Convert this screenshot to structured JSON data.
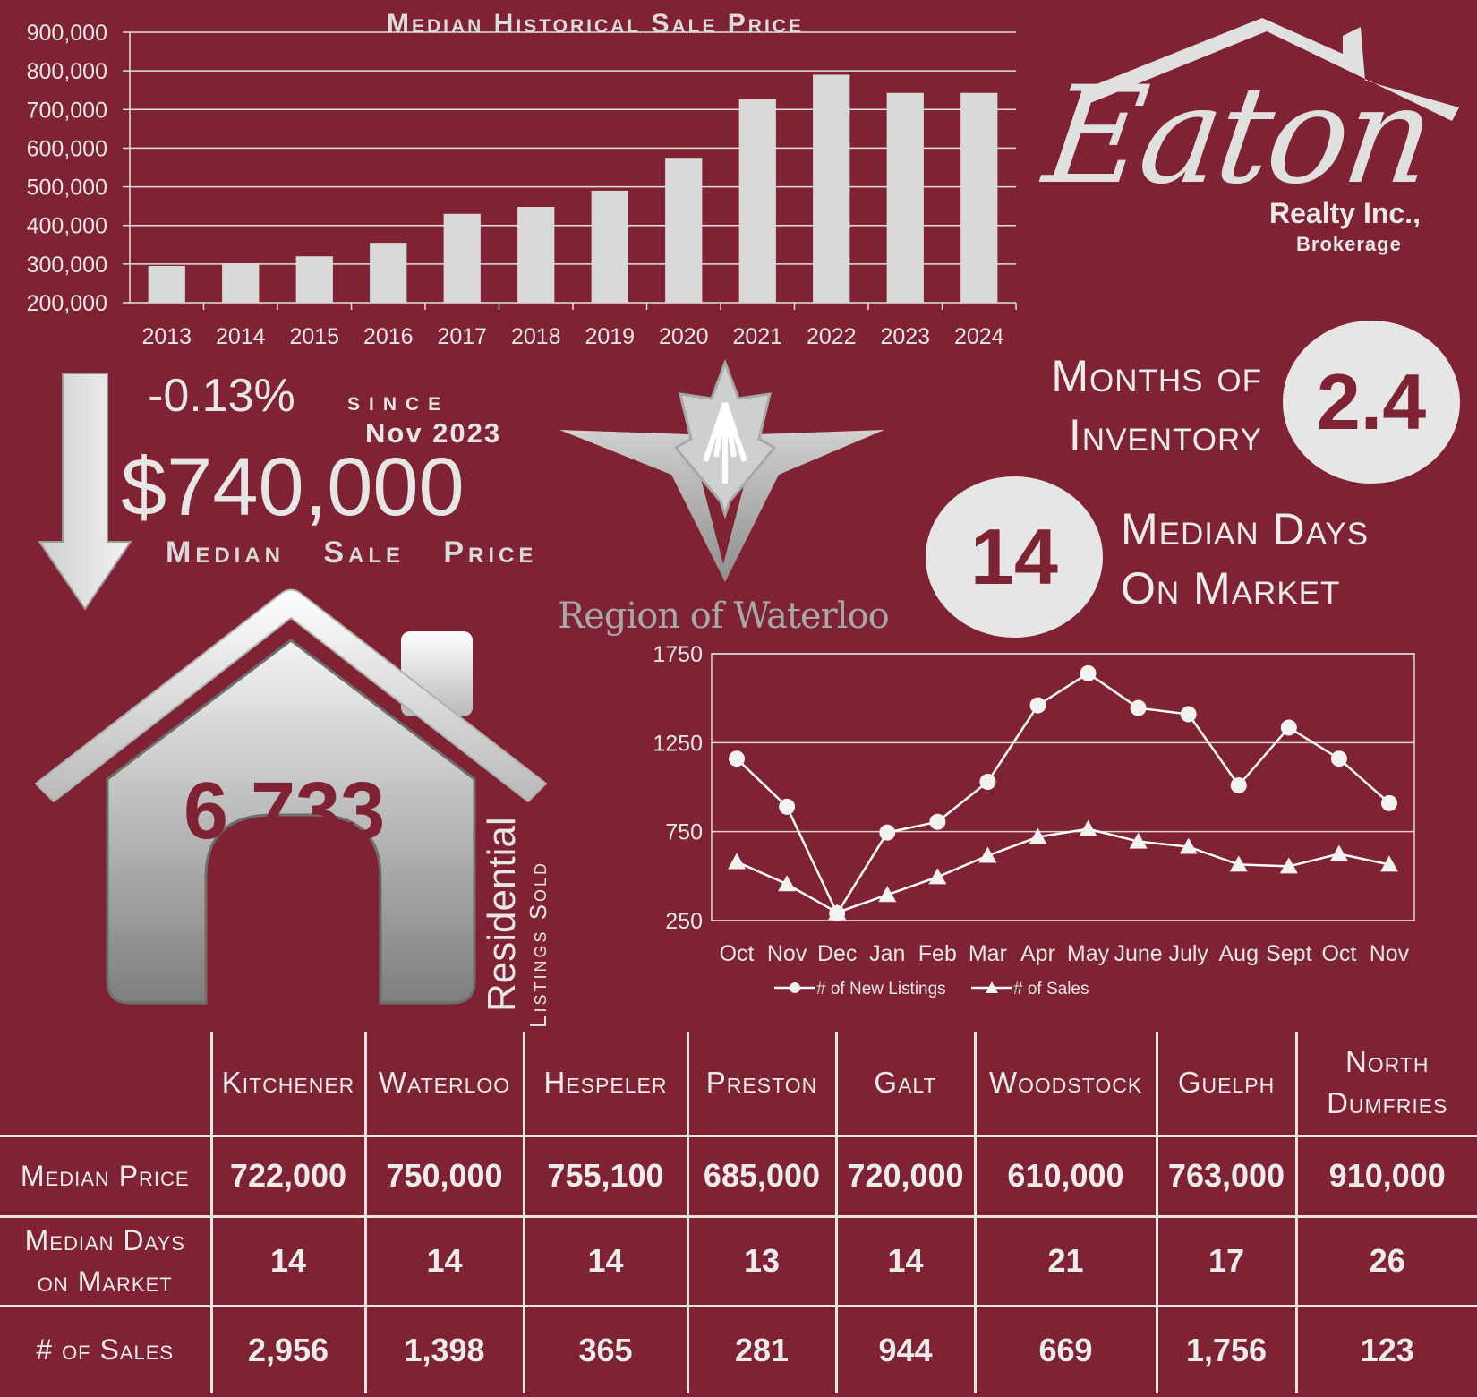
{
  "chart_data": [
    {
      "type": "bar",
      "title": "Median Historical Sale Price",
      "categories": [
        "2013",
        "2014",
        "2015",
        "2016",
        "2017",
        "2018",
        "2019",
        "2020",
        "2021",
        "2022",
        "2023",
        "2024"
      ],
      "values": [
        295000,
        302000,
        320000,
        355000,
        430000,
        448000,
        490000,
        575000,
        727000,
        790000,
        743000,
        743000
      ],
      "ylim": [
        200000,
        900000
      ],
      "yticks": [
        "200,000",
        "300,000",
        "400,000",
        "500,000",
        "600,000",
        "700,000",
        "800,000",
        "900,000"
      ],
      "grid": true,
      "colors": {
        "bar": "#d9d9d9",
        "grid": "#e0e0e0"
      }
    },
    {
      "type": "line",
      "categories": [
        "Oct",
        "Nov",
        "Dec",
        "Jan",
        "Feb",
        "Mar",
        "Apr",
        "May",
        "June",
        "July",
        "Aug",
        "Sept",
        "Oct",
        "Nov"
      ],
      "series": [
        {
          "name": "# of New Listings",
          "marker": "circle",
          "values": [
            1160,
            890,
            290,
            745,
            805,
            1030,
            1460,
            1640,
            1445,
            1410,
            1010,
            1335,
            1160,
            910
          ]
        },
        {
          "name": "# of Sales",
          "marker": "triangle",
          "values": [
            580,
            455,
            295,
            395,
            495,
            615,
            720,
            765,
            695,
            665,
            565,
            555,
            625,
            565
          ]
        }
      ],
      "ylim": [
        250,
        1750
      ],
      "yticks": [
        "250",
        "750",
        "1250",
        "1750"
      ],
      "grid": true,
      "legend": "bottom"
    }
  ],
  "summary": {
    "percent_change": "-0.13%",
    "since_label": "since",
    "since_date": "Nov 2023",
    "median_price": "$740,000",
    "median_price_label": "Median   Sale   Price",
    "months_inventory_label_1": "Months of",
    "months_inventory_label_2": "Inventory",
    "months_inventory_value": "2.4",
    "median_days_label_1": "Median Days",
    "median_days_label_2": "On Market",
    "median_days_value": "14",
    "listings_sold": "6,733",
    "residential_label": "Residential",
    "listings_sold_label": "Listings Sold"
  },
  "brand": {
    "logo_script": "Eaton",
    "company": "Realty Inc.,",
    "subtitle": "Brokerage",
    "region_logo_text": "Region of Waterloo"
  },
  "table": {
    "columns": [
      "Kitchener",
      "Waterloo",
      "Hespeler",
      "Preston",
      "Galt",
      "Woodstock",
      "Guelph",
      "North Dumfries"
    ],
    "rows": [
      {
        "label": "Median Price",
        "values": [
          "722,000",
          "750,000",
          "755,100",
          "685,000",
          "720,000",
          "610,000",
          "763,000",
          "910,000"
        ]
      },
      {
        "label": "Median Days on Market",
        "values": [
          "14",
          "14",
          "14",
          "13",
          "14",
          "21",
          "17",
          "26"
        ]
      },
      {
        "label": "# of Sales",
        "values": [
          "2,956",
          "1,398",
          "365",
          "281",
          "944",
          "669",
          "1,756",
          "123"
        ]
      }
    ]
  },
  "colors": {
    "background": "#7f2233",
    "foreground": "#e6e6e6"
  }
}
